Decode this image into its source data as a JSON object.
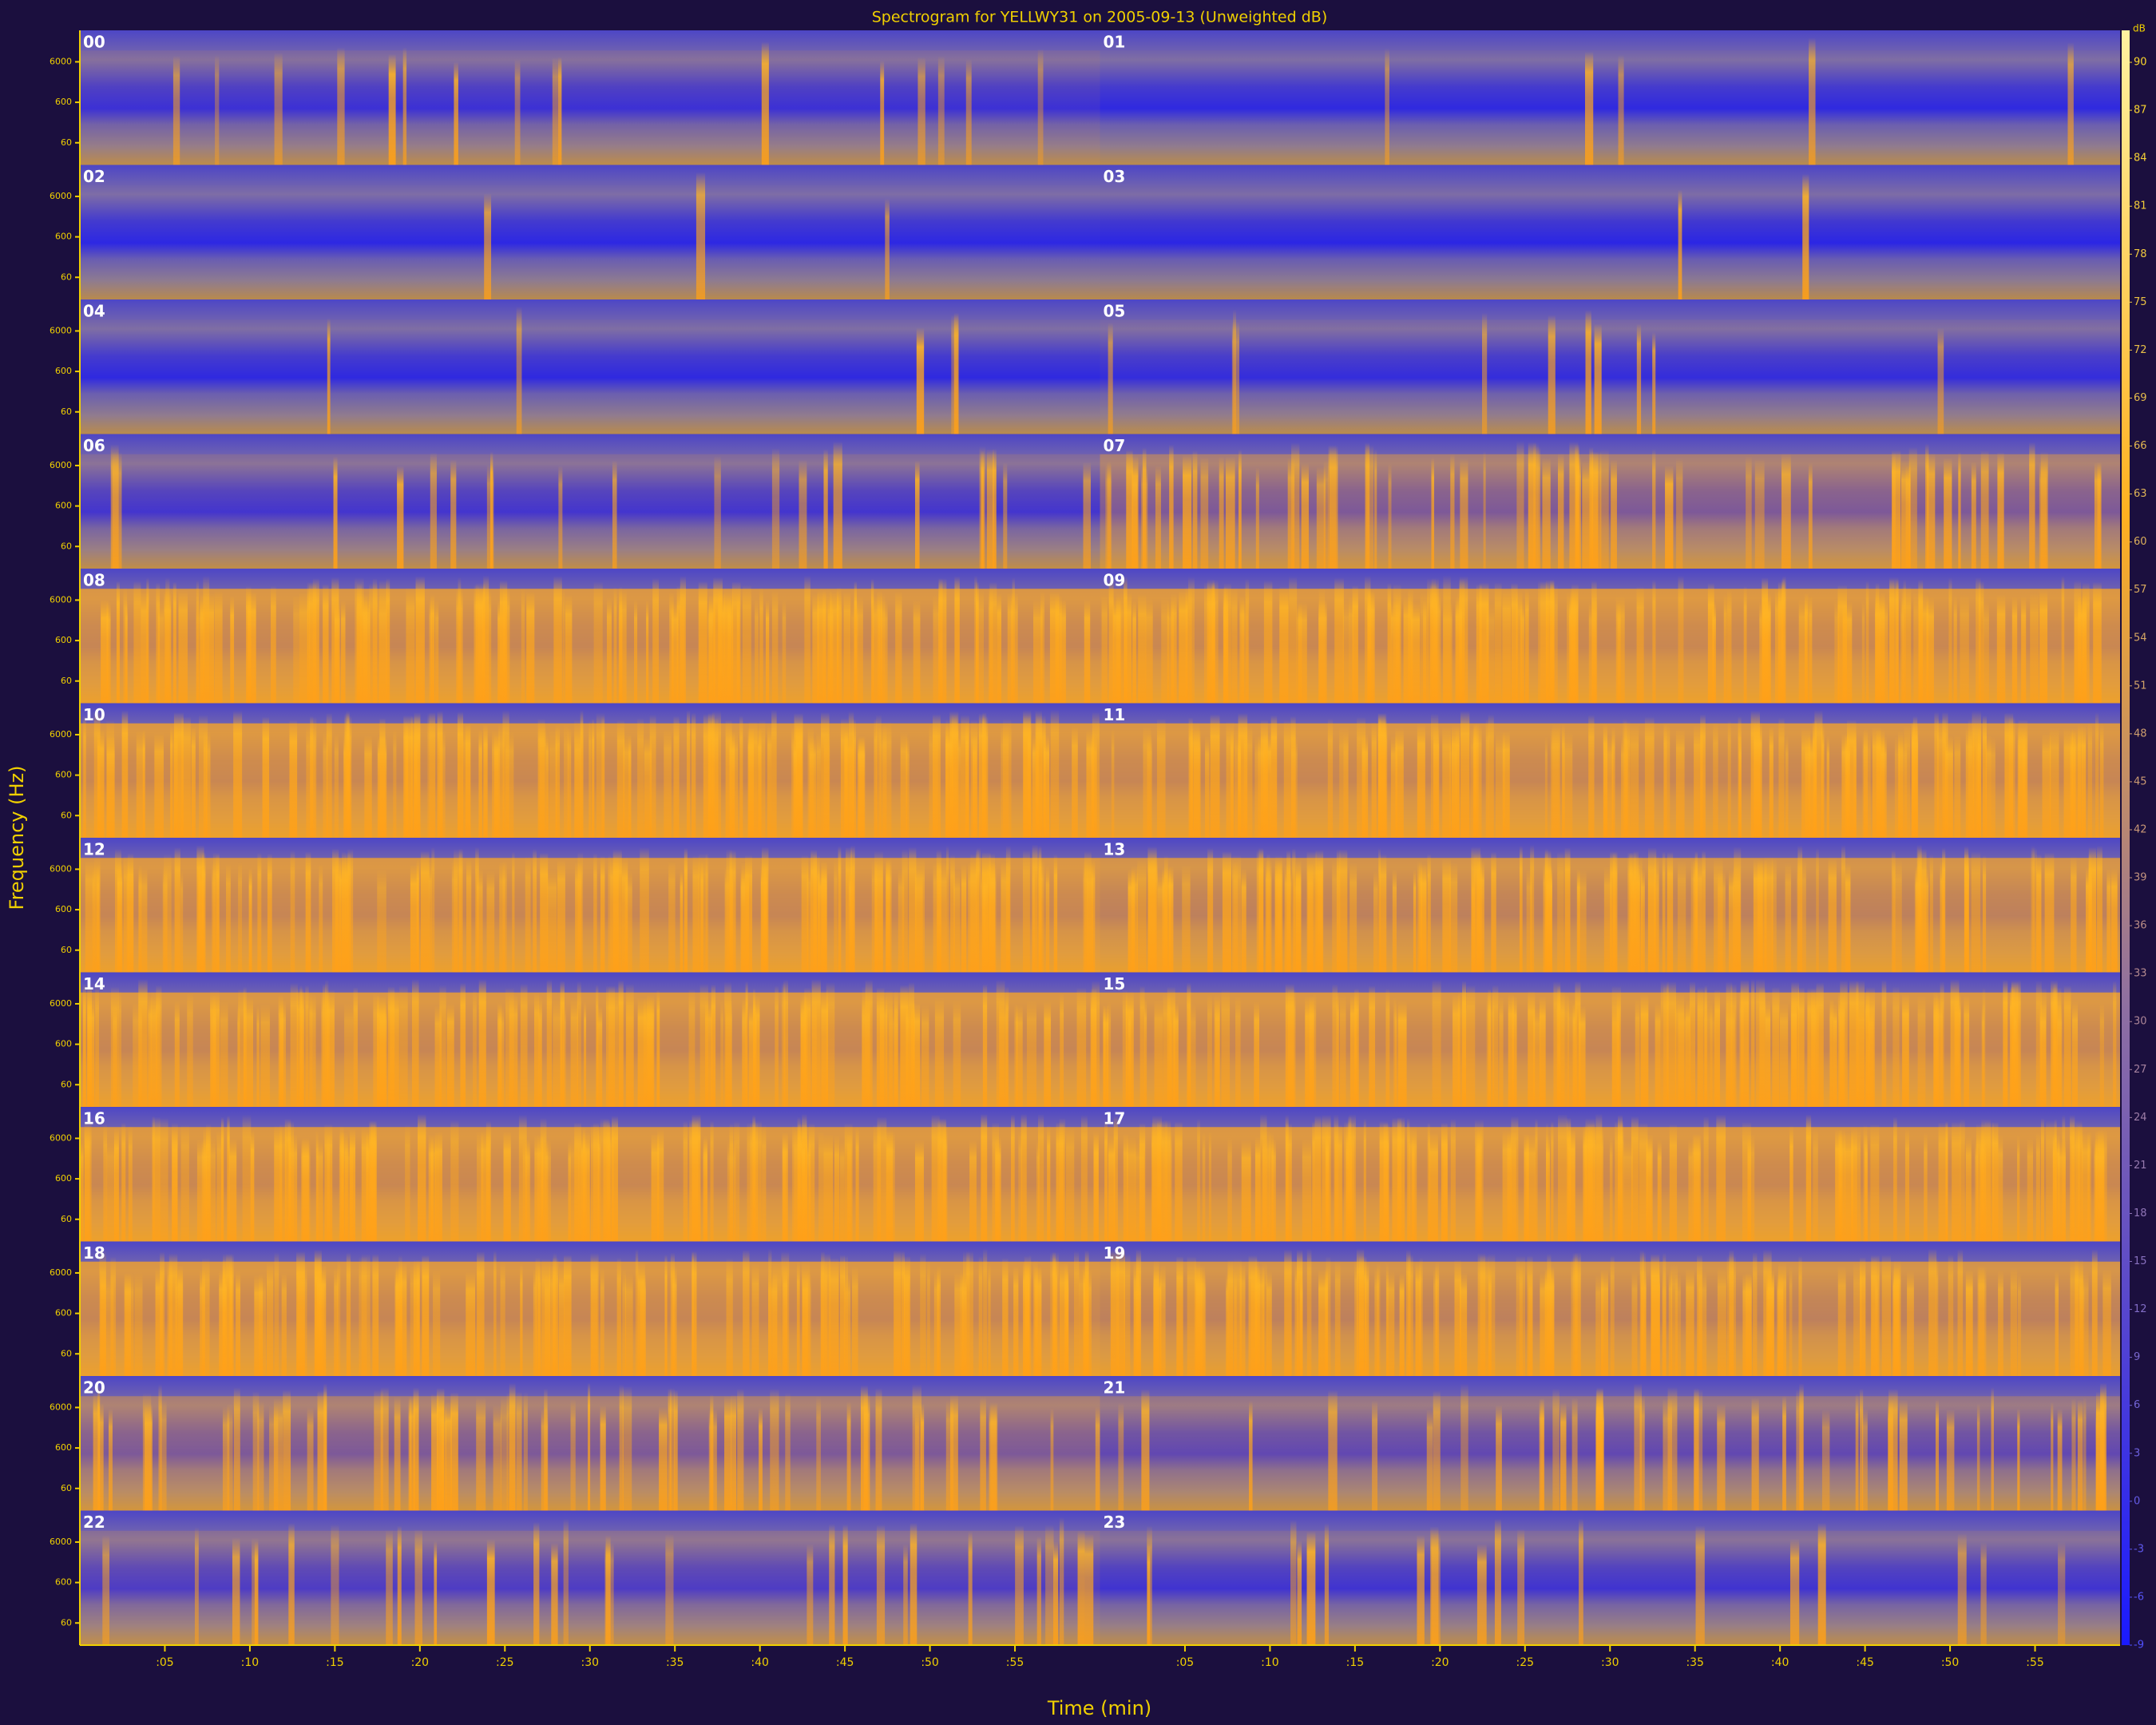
{
  "chart_data": {
    "type": "spectrogram",
    "title": "Spectrogram for YELLWY31 on 2005-09-13 (Unweighted dB)",
    "x_label": "Time (min)",
    "y_label": "Frequency (Hz)",
    "panels": [
      "00",
      "01",
      "02",
      "03",
      "04",
      "05",
      "06",
      "07",
      "08",
      "09",
      "10",
      "11",
      "12",
      "13",
      "14",
      "15",
      "16",
      "17",
      "18",
      "19",
      "20",
      "21",
      "22",
      "23"
    ],
    "xlim": [
      0,
      60
    ],
    "xticks": [
      {
        "value": 5,
        "label": ":05"
      },
      {
        "value": 10,
        "label": ":10"
      },
      {
        "value": 15,
        "label": ":15"
      },
      {
        "value": 20,
        "label": ":20"
      },
      {
        "value": 25,
        "label": ":25"
      },
      {
        "value": 30,
        "label": ":30"
      },
      {
        "value": 35,
        "label": ":35"
      },
      {
        "value": 40,
        "label": ":40"
      },
      {
        "value": 45,
        "label": ":45"
      },
      {
        "value": 50,
        "label": ":50"
      },
      {
        "value": 55,
        "label": ":55"
      }
    ],
    "ylim": [
      17,
      36000
    ],
    "log_y": true,
    "yticks": [
      60,
      600,
      6000
    ],
    "colorbar": {
      "label": "dB",
      "lim": [
        -9,
        92
      ],
      "ticks": [
        90,
        87,
        84,
        81,
        78,
        75,
        72,
        69,
        66,
        63,
        60,
        57,
        54,
        51,
        48,
        45,
        42,
        39,
        36,
        33,
        30,
        27,
        24,
        21,
        18,
        15,
        12,
        9,
        6,
        3,
        0,
        -3,
        -6,
        -9
      ]
    }
  }
}
